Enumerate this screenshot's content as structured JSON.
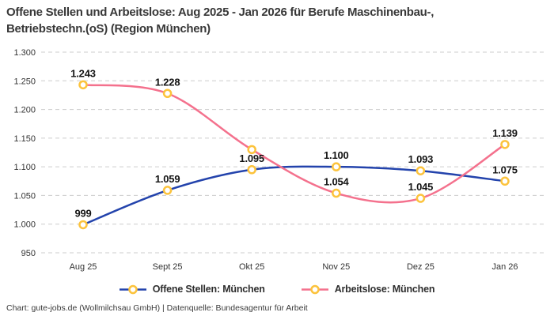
{
  "title_lines": [
    "Offene Stellen und Arbeitslose: Aug 2025 - Jan 2026 für Berufe Maschinenbau-,",
    "Betriebstechn.(oS) (Region München)"
  ],
  "footer": "Chart: gute-jobs.de (Wollmilchsau GmbH) | Datenquelle: Bundesagentur für Arbeit",
  "chart_data": {
    "type": "line",
    "title": "Offene Stellen und Arbeitslose: Aug 2025 - Jan 2026 für Berufe Maschinenbau-, Betriebstechn.(oS) (Region München)",
    "categories": [
      "Aug 25",
      "Sept 25",
      "Okt 25",
      "Nov 25",
      "Dez 25",
      "Jan 26"
    ],
    "series": [
      {
        "name": "Offene Stellen: München",
        "color": "#2343ac",
        "values": [
          999,
          1059,
          1095,
          1100,
          1093,
          1075
        ],
        "point_labels": [
          "999",
          "1.059",
          "1.095",
          "1.100",
          "1.093",
          "1.075"
        ]
      },
      {
        "name": "Arbeitslose: München",
        "color": "#f4718d",
        "values": [
          1243,
          1228,
          1130,
          1054,
          1045,
          1139
        ],
        "point_labels": [
          "1.243",
          "1.228",
          "",
          "1.054",
          "1.045",
          "1.139"
        ]
      }
    ],
    "marker": {
      "shape": "circle",
      "stroke_color": "#fcc33c",
      "fill_color": "#ffffff"
    },
    "ylim": [
      950,
      1300
    ],
    "yticks": [
      950,
      1000,
      1050,
      1100,
      1150,
      1200,
      1250,
      1300
    ],
    "ytick_labels": [
      "950",
      "1.000",
      "1.050",
      "1.100",
      "1.150",
      "1.200",
      "1.250",
      "1.300"
    ],
    "grid": "horizontal-dashed",
    "gridline_color": "#cccccc",
    "smooth": true,
    "legend_position": "bottom"
  }
}
